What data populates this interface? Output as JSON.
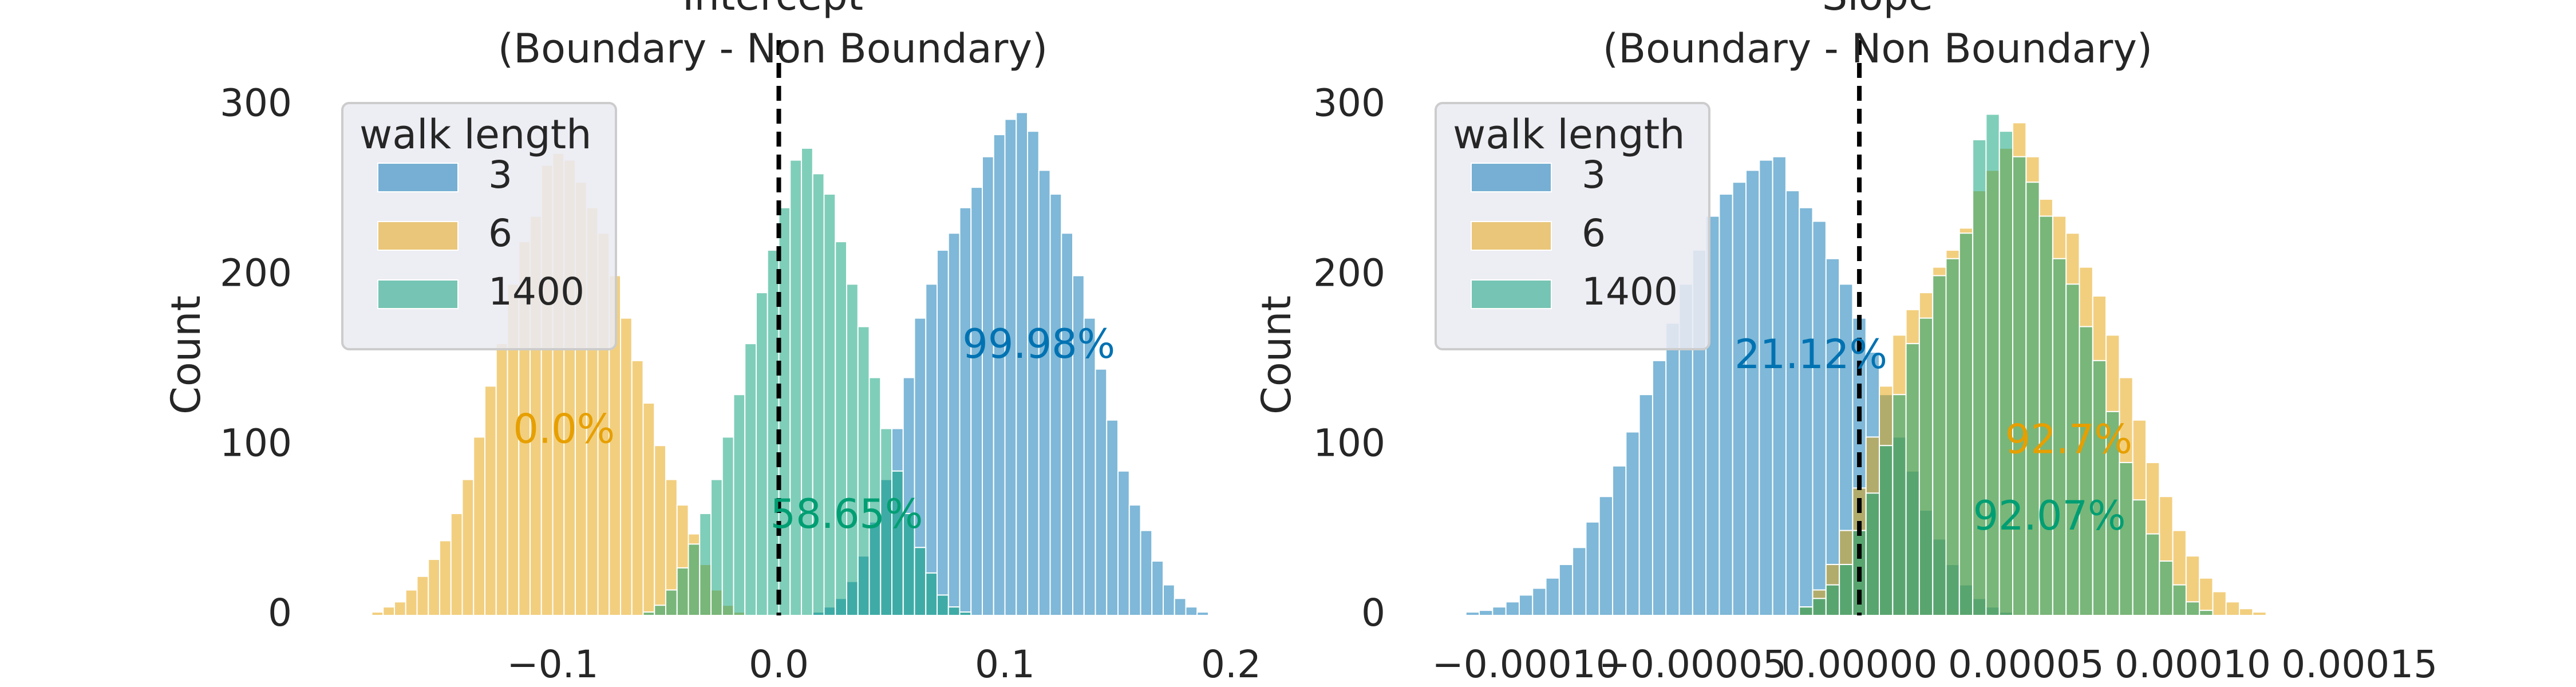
{
  "chart_data": [
    {
      "type": "histogram",
      "title_lines": [
        "Intercept",
        "(Boundary - Non Boundary)"
      ],
      "ylabel": "Count",
      "xlabel": "",
      "xlim": [
        -0.19,
        0.21
      ],
      "ylim": [
        0,
        310
      ],
      "xticks": [
        -0.1,
        0.0,
        0.1,
        0.2
      ],
      "xtick_labels": [
        "−0.1",
        "0.0",
        "0.1",
        "0.2"
      ],
      "yticks": [
        0,
        100,
        200,
        300
      ],
      "ytick_labels": [
        "0",
        "100",
        "200",
        "300"
      ],
      "zero_line": 0.0,
      "grid": false,
      "legend": {
        "title": "walk length",
        "placement": "top-left",
        "entries": [
          "3",
          "6",
          "1400"
        ]
      },
      "series": [
        {
          "name": "3",
          "color": "#0072b2",
          "bins": {
            "start": 0.015,
            "width": 0.005
          },
          "counts": [
            2,
            5,
            10,
            20,
            35,
            55,
            80,
            110,
            140,
            175,
            195,
            215,
            225,
            240,
            252,
            270,
            283,
            292,
            296,
            285,
            262,
            248,
            225,
            200,
            175,
            145,
            115,
            85,
            65,
            50,
            32,
            18,
            10,
            5,
            2
          ]
        },
        {
          "name": "6",
          "color": "#e69f00",
          "bins": {
            "start": -0.18,
            "width": 0.005
          },
          "counts": [
            2,
            5,
            8,
            15,
            23,
            33,
            44,
            60,
            80,
            105,
            135,
            160,
            195,
            220,
            235,
            265,
            272,
            268,
            255,
            240,
            225,
            200,
            175,
            150,
            125,
            100,
            80,
            65,
            48,
            30,
            15,
            6,
            2
          ]
        },
        {
          "name": "1400",
          "color": "#009e73",
          "bins": {
            "start": -0.06,
            "width": 0.005
          },
          "counts": [
            2,
            6,
            15,
            28,
            42,
            60,
            80,
            105,
            130,
            160,
            190,
            215,
            240,
            268,
            275,
            260,
            248,
            220,
            195,
            170,
            140,
            110,
            85,
            60,
            40,
            25,
            12,
            5,
            2
          ]
        }
      ],
      "annotations": [
        {
          "text": "99.98%",
          "x": 0.115,
          "y": 158,
          "color": "#0072b2"
        },
        {
          "text": "0.0%",
          "x": -0.095,
          "y": 108,
          "color": "#e69f00"
        },
        {
          "text": "58.65%",
          "x": 0.03,
          "y": 58,
          "color": "#009e73"
        }
      ]
    },
    {
      "type": "histogram",
      "title_lines": [
        "Slope",
        "(Boundary - Non Boundary)"
      ],
      "ylabel": "Count",
      "xlabel": "",
      "xlim": [
        -0.000125,
        0.00016
      ],
      "ylim": [
        0,
        310
      ],
      "xticks": [
        -0.0001,
        -5e-05,
        0.0,
        5e-05,
        0.0001,
        0.00015
      ],
      "xtick_labels": [
        "−0.00010",
        "−0.00005",
        "0.00000",
        "0.00005",
        "0.00010",
        "0.00015"
      ],
      "yticks": [
        0,
        100,
        200,
        300
      ],
      "ytick_labels": [
        "0",
        "100",
        "200",
        "300"
      ],
      "zero_line": 0.0,
      "grid": false,
      "legend": {
        "title": "walk length",
        "placement": "top-left",
        "entries": [
          "3",
          "6",
          "1400"
        ]
      },
      "series": [
        {
          "name": "3",
          "color": "#0072b2",
          "bins": {
            "start": -0.000118,
            "width": 4e-06
          },
          "counts": [
            2,
            3,
            5,
            8,
            12,
            16,
            22,
            30,
            40,
            55,
            70,
            88,
            108,
            130,
            150,
            172,
            195,
            215,
            235,
            248,
            255,
            262,
            268,
            270,
            250,
            240,
            232,
            210,
            195,
            175,
            155,
            130,
            105,
            85,
            62,
            45,
            30,
            18,
            10,
            5,
            2
          ]
        },
        {
          "name": "6",
          "color": "#e69f00",
          "bins": {
            "start": -1.8e-05,
            "width": 4e-06
          },
          "counts": [
            5,
            15,
            30,
            50,
            75,
            105,
            135,
            165,
            180,
            190,
            205,
            215,
            228,
            250,
            262,
            275,
            290,
            270,
            245,
            235,
            225,
            205,
            188,
            165,
            140,
            115,
            90,
            70,
            50,
            35,
            22,
            14,
            8,
            4,
            2
          ]
        },
        {
          "name": "1400",
          "color": "#009e73",
          "bins": {
            "start": -1.8e-05,
            "width": 4e-06
          },
          "counts": [
            5,
            10,
            18,
            30,
            50,
            72,
            100,
            130,
            160,
            175,
            200,
            210,
            225,
            280,
            295,
            285,
            270,
            255,
            235,
            210,
            195,
            170,
            150,
            120,
            90,
            68,
            48,
            32,
            18,
            8,
            3
          ]
        }
      ],
      "annotations": [
        {
          "text": "21.12%",
          "x": -1.45e-05,
          "y": 152,
          "color": "#0072b2"
        },
        {
          "text": "92.7%",
          "x": 6.28e-05,
          "y": 102,
          "color": "#e69f00"
        },
        {
          "text": "92.07%",
          "x": 5.7e-05,
          "y": 57,
          "color": "#009e73"
        }
      ]
    }
  ]
}
